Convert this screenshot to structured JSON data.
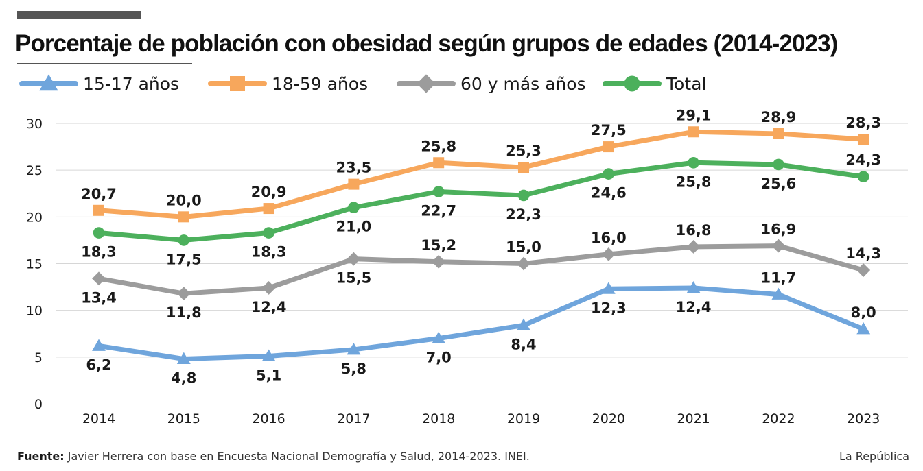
{
  "header": {
    "title": "Porcentaje de población con obesidad según grupos de edades (2014-2023)"
  },
  "chart_data": {
    "type": "line",
    "title": "Porcentaje de población con obesidad según grupos de edades (2014-2023)",
    "xlabel": "",
    "ylabel": "",
    "x": [
      "2014",
      "2015",
      "2016",
      "2017",
      "2018",
      "2019",
      "2020",
      "2021",
      "2022",
      "2023"
    ],
    "ylim": [
      0,
      30
    ],
    "yticks": [
      "0",
      "5",
      "10",
      "15",
      "20",
      "25",
      "30"
    ],
    "grid": "horizontal",
    "legend_position": "top-left",
    "series": [
      {
        "name": "15-17 años",
        "color": "#6fa5dc",
        "marker": "triangle",
        "values": [
          6.2,
          4.8,
          5.1,
          5.8,
          7.0,
          8.4,
          12.3,
          12.4,
          11.7,
          8.0
        ],
        "labels": [
          "6,2",
          "4,8",
          "5,1",
          "5,8",
          "7,0",
          "8,4",
          "12,3",
          "12,4",
          "11,7",
          "8,0"
        ],
        "label_pos": [
          "below",
          "below",
          "below",
          "below",
          "below",
          "below",
          "below",
          "below",
          "above",
          "above"
        ]
      },
      {
        "name": "18-59 años",
        "color": "#f7a75c",
        "marker": "square",
        "values": [
          20.7,
          20.0,
          20.9,
          23.5,
          25.8,
          25.3,
          27.5,
          29.1,
          28.9,
          28.3
        ],
        "labels": [
          "20,7",
          "20,0",
          "20,9",
          "23,5",
          "25,8",
          "25,3",
          "27,5",
          "29,1",
          "28,9",
          "28,3"
        ],
        "label_pos": [
          "above",
          "above",
          "above",
          "above",
          "above",
          "above",
          "above",
          "above",
          "above",
          "above"
        ]
      },
      {
        "name": "60 y más años",
        "color": "#9c9c9c",
        "marker": "diamond",
        "values": [
          13.4,
          11.8,
          12.4,
          15.5,
          15.2,
          15.0,
          16.0,
          16.8,
          16.9,
          14.3
        ],
        "labels": [
          "13,4",
          "11,8",
          "12,4",
          "15,5",
          "15,2",
          "15,0",
          "16,0",
          "16,8",
          "16,9",
          "14,3"
        ],
        "label_pos": [
          "below",
          "below",
          "below",
          "below",
          "above",
          "above",
          "above",
          "above",
          "above",
          "above"
        ]
      },
      {
        "name": "Total",
        "color": "#4cb05c",
        "marker": "circle",
        "values": [
          18.3,
          17.5,
          18.3,
          21.0,
          22.7,
          22.3,
          24.6,
          25.8,
          25.6,
          24.3
        ],
        "labels": [
          "18,3",
          "17,5",
          "18,3",
          "21,0",
          "22,7",
          "22,3",
          "24,6",
          "25,8",
          "25,6",
          "24,3"
        ],
        "label_pos": [
          "below",
          "below",
          "below",
          "below",
          "below",
          "below",
          "below",
          "below",
          "below",
          "above"
        ]
      }
    ]
  },
  "footer": {
    "source_label": "Fuente:",
    "source_text": " Javier Herrera con base en Encuesta Nacional Demografía y Salud, 2014-2023. INEI.",
    "credit": "La República"
  }
}
